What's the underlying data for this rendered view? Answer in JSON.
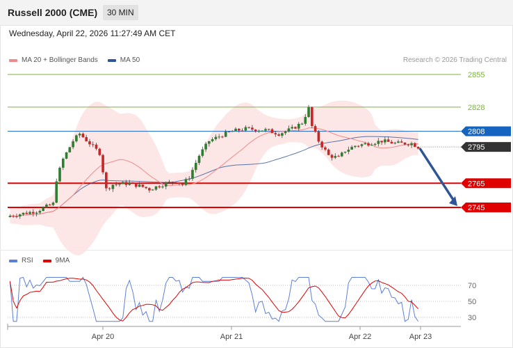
{
  "header": {
    "title": "Russell 2000 (CME)",
    "timeframe": "30 MIN"
  },
  "datetime": "Wednesday, April 22, 2026 11:27:49 AM CET",
  "credit": "Research © 2026 Trading Central",
  "colors": {
    "bollinger_fill": "#fde2e2",
    "ma20": "#f08a8a",
    "ma50": "#2f5597",
    "bull": "#2e7d32",
    "bear": "#c62828",
    "resistance": "#7cb342",
    "pivot": "#1565c0",
    "support": "#e00000",
    "current": "#333333",
    "arrow": "#2f5597",
    "rsi": "#5b7fd6",
    "rsi_ma": "#e00000"
  },
  "chart_data": [
    {
      "type": "candlestick",
      "title": "",
      "legend": [
        {
          "name": "MA 20 + Bollinger Bands",
          "color": "#f08a8a"
        },
        {
          "name": "MA 50",
          "color": "#2f5597"
        }
      ],
      "legend_position": "top-left",
      "ylim": [
        2720,
        2860
      ],
      "levels": [
        {
          "value": 2855,
          "label": "2855",
          "kind": "resistance"
        },
        {
          "value": 2828,
          "label": "2828",
          "kind": "resistance"
        },
        {
          "value": 2808,
          "label": "2808",
          "kind": "pivot"
        },
        {
          "value": 2795,
          "label": "2795",
          "kind": "current"
        },
        {
          "value": 2765,
          "label": "2765",
          "kind": "support"
        },
        {
          "value": 2745,
          "label": "2745",
          "kind": "support"
        }
      ],
      "projection": {
        "from": 2795,
        "to": 2745
      }
    },
    {
      "type": "line",
      "title": "",
      "legend": [
        {
          "name": "RSI",
          "color": "#5b7fd6"
        },
        {
          "name": "9MA",
          "color": "#e00000"
        }
      ],
      "legend_position": "top-left",
      "ylim": [
        20,
        85
      ],
      "yticks": [
        70,
        50,
        30
      ],
      "x_labels": [
        "Apr 20",
        "Apr 21",
        "Apr 22",
        "Apr 23"
      ]
    }
  ]
}
